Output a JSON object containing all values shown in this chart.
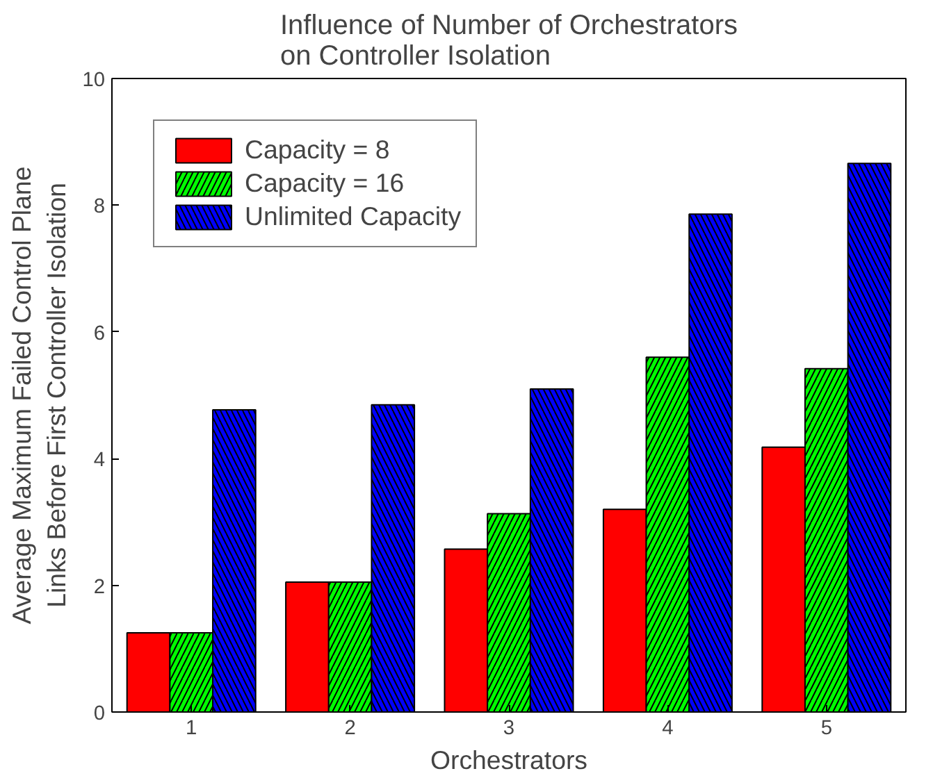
{
  "chart_data": {
    "type": "bar",
    "title": "Influence of Number of Orchestrators\non Controller Isolation",
    "xlabel": "Orchestrators",
    "ylabel": "Average Maximum Failed Control Plane\nLinks Before First Controller Isolation",
    "categories": [
      "1",
      "2",
      "3",
      "4",
      "5"
    ],
    "series": [
      {
        "name": "Capacity = 8",
        "color": "#ff0000",
        "values": [
          1.25,
          2.05,
          2.57,
          3.2,
          4.18
        ]
      },
      {
        "name": "Capacity = 16",
        "color": "#00ff00",
        "values": [
          1.25,
          2.05,
          3.13,
          5.6,
          5.42
        ]
      },
      {
        "name": "Unlimited Capacity",
        "color": "#0000ff",
        "values": [
          4.77,
          4.85,
          5.1,
          7.86,
          8.66
        ]
      }
    ],
    "ylim": [
      0,
      10
    ],
    "yticks": [
      0,
      2,
      4,
      6,
      8,
      10
    ],
    "grid": false,
    "legend": "top left"
  }
}
